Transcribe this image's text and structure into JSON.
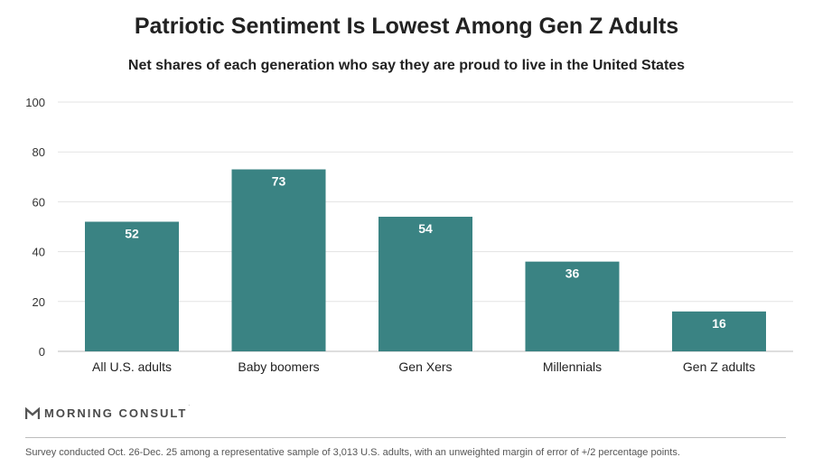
{
  "header": {
    "title": "Patriotic Sentiment Is Lowest Among Gen Z Adults",
    "subtitle": "Net shares of each generation who say they are proud to live in the United States"
  },
  "brand": {
    "name": "MORNING CONSULT",
    "logo_icon": "morning-consult-m-logo-icon",
    "tm": "˙"
  },
  "footnote": "Survey conducted Oct. 26-Dec. 25 among a representative sample of 3,013 U.S. adults, with an unweighted margin of error of +/2 percentage points.",
  "chart_data": {
    "type": "bar",
    "title": "Patriotic Sentiment Is Lowest Among Gen Z Adults",
    "subtitle": "Net shares of each generation who say they are proud to live in the United States",
    "categories": [
      "All U.S. adults",
      "Baby boomers",
      "Gen Xers",
      "Millennials",
      "Gen Z adults"
    ],
    "values": [
      52,
      73,
      54,
      36,
      16
    ],
    "xlabel": "",
    "ylabel": "",
    "ylim": [
      0,
      100
    ],
    "yticks": [
      0,
      20,
      40,
      60,
      80,
      100
    ],
    "grid": true,
    "bar_color": "#3a8383",
    "label_color": "#ffffff",
    "grid_color": "#e3e3e3"
  }
}
